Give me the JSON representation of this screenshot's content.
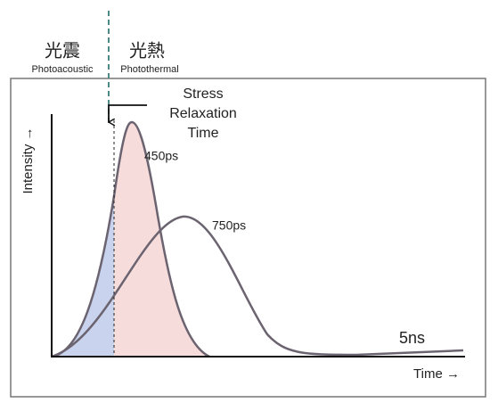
{
  "labels": {
    "photoacoustic_cn": "光震",
    "photoacoustic": "Photoacoustic",
    "photothermal_cn": "光熱",
    "photothermal": "Photothermal"
  },
  "annotation": {
    "lines": [
      "Stress",
      "Relaxation",
      "Time"
    ]
  },
  "curves": [
    {
      "label": "450ps"
    },
    {
      "label": "750ps"
    }
  ],
  "tail_label": "5ns",
  "axes": {
    "y": "Intensity →",
    "x": "Time →"
  }
}
